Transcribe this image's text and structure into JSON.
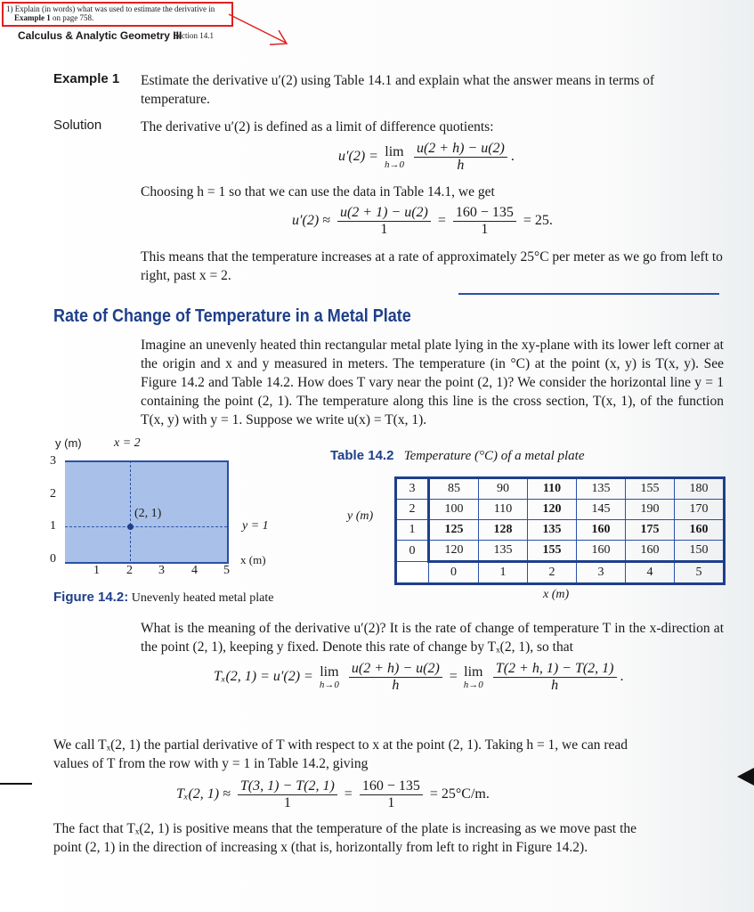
{
  "annotation": {
    "line1": "1) Explain (in words) what was used to estimate the derivative in",
    "line2_bold": "Example 1",
    "line2_rest": " on page 758.",
    "color": "#e02020"
  },
  "header": {
    "course": "Calculus & Analytic Geometry III",
    "section": "Section 14.1"
  },
  "example": {
    "label": "Example 1",
    "text": "Estimate the derivative u′(2) using Table 14.1 and explain what the answer means in terms of temperature."
  },
  "solution": {
    "label": "Solution",
    "intro": "The derivative u′(2) is defined as a limit of difference quotients:",
    "eq1": {
      "lhs": "u′(2) =",
      "lim": "lim",
      "sub": "h→0",
      "num": "u(2 + h) − u(2)",
      "den": "h",
      "end": "."
    },
    "choose": "Choosing h = 1 so that we can use the data in Table 14.1, we get",
    "eq2": {
      "lhs": "u′(2) ≈",
      "num1": "u(2 + 1) − u(2)",
      "den1": "1",
      "num2": "160 − 135",
      "den2": "1",
      "result": "= 25."
    },
    "meaning": "This means that the temperature increases at a rate of approximately 25°C per meter as we go from left to right, past x = 2."
  },
  "section_heading": "Rate of Change of Temperature in a Metal Plate",
  "para1": "Imagine an unevenly heated thin rectangular metal plate lying in the xy-plane with its lower left corner at the origin and x and y measured in meters. The temperature (in °C) at the point (x, y) is T(x, y). See Figure 14.2 and Table 14.2. How does T vary near the point (2, 1)? We consider the horizontal line y = 1 containing the point (2, 1). The temperature along this line is the cross section, T(x, 1), of the function T(x, y) with y = 1. Suppose we write u(x) = T(x, 1).",
  "figure": {
    "ylabel": "y (m)",
    "xlabel": "x (m)",
    "x_line": "x = 2",
    "y_line": "y = 1",
    "point": "(2, 1)",
    "xticks": [
      "1",
      "2",
      "3",
      "4",
      "5"
    ],
    "yticks": [
      "0",
      "1",
      "2",
      "3"
    ],
    "caption_label": "Figure 14.2:",
    "caption": "Unevenly heated metal plate",
    "fill": "#a9c1e8",
    "edge": "#2a50a8"
  },
  "table": {
    "label": "Table 14.2",
    "title": "Temperature (°C) of a metal plate",
    "ylabel": "y (m)",
    "xlabel": "x (m)",
    "rows": [
      {
        "y": "3",
        "vals": [
          "85",
          "90",
          "110",
          "135",
          "155",
          "180"
        ]
      },
      {
        "y": "2",
        "vals": [
          "100",
          "110",
          "120",
          "145",
          "190",
          "170"
        ]
      },
      {
        "y": "1",
        "vals": [
          "125",
          "128",
          "135",
          "160",
          "175",
          "160"
        ]
      },
      {
        "y": "0",
        "vals": [
          "120",
          "135",
          "155",
          "160",
          "160",
          "150"
        ]
      }
    ],
    "x": [
      "0",
      "1",
      "2",
      "3",
      "4",
      "5"
    ]
  },
  "para2": "What is the meaning of the derivative u′(2)? It is the rate of change of temperature T in the x-direction at the point (2, 1), keeping y fixed. Denote this rate of change by Tₓ(2, 1), so that",
  "eq3": {
    "lhs": "Tₓ(2, 1) = u′(2) =",
    "lim": "lim",
    "sub": "h→0",
    "num1": "u(2 + h) − u(2)",
    "den1": "h",
    "num2": "T(2 + h, 1) − T(2, 1)",
    "den2": "h",
    "end": "."
  },
  "para3": "We call Tₓ(2, 1) the partial derivative of T with respect to x at the point (2, 1). Taking h = 1, we can read values of T from the row with y = 1 in Table 14.2, giving",
  "eq4": {
    "lhs": "Tₓ(2, 1) ≈",
    "num1": "T(3, 1) − T(2, 1)",
    "den1": "1",
    "num2": "160 − 135",
    "den2": "1",
    "result": "= 25°C/m."
  },
  "para4": "The fact that Tₓ(2, 1) is positive means that the temperature of the plate is increasing as we move past the point (2, 1) in the direction of increasing x (that is, horizontally from left to right in Figure 14.2)."
}
